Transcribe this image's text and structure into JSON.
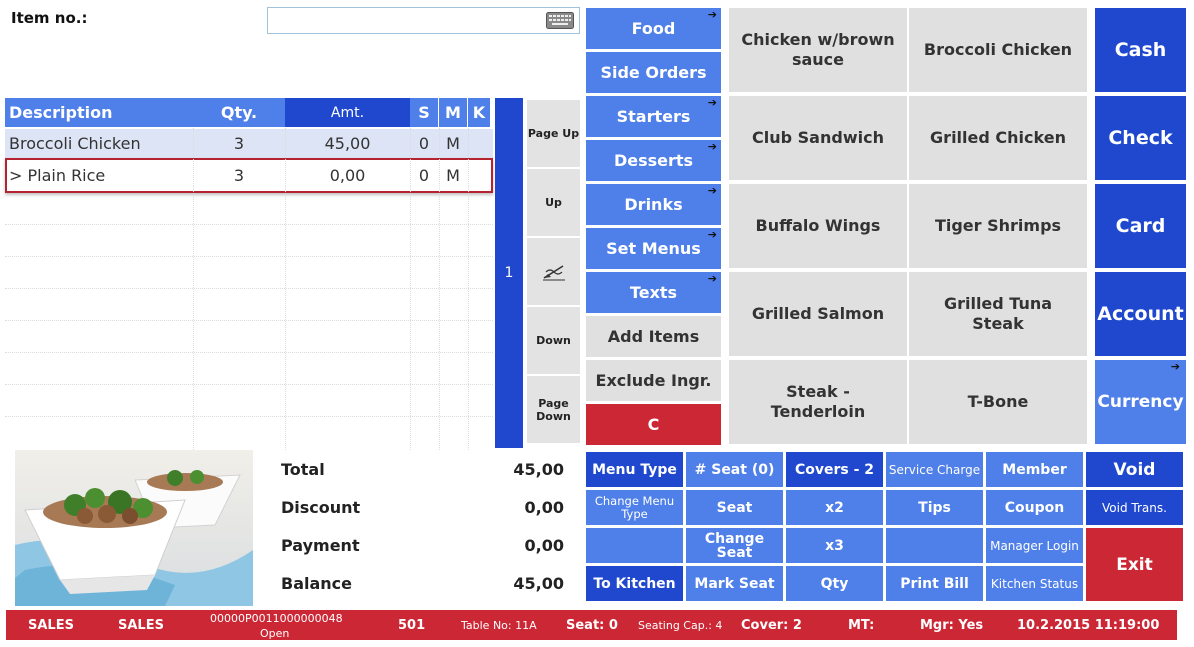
{
  "item_no": {
    "label": "Item no.:",
    "value": ""
  },
  "order": {
    "columns": {
      "description": "Description",
      "qty": "Qty.",
      "amt": "Amt.",
      "s": "S",
      "m": "M",
      "k": "K"
    },
    "rows": [
      {
        "description": "Broccoli Chicken",
        "qty": "3",
        "amt": "45,00",
        "s": "0",
        "m": "M"
      },
      {
        "description": "> Plain Rice",
        "qty": "3",
        "amt": "0,00",
        "s": "0",
        "m": "M"
      }
    ]
  },
  "scroll": {
    "page_indicator": "1"
  },
  "nav": {
    "page_up": "Page Up",
    "up": "Up",
    "down": "Down",
    "page_down": "Page Down"
  },
  "categories": [
    "Food",
    "Side Orders",
    "Starters",
    "Desserts",
    "Drinks",
    "Set Menus",
    "Texts",
    "Add Items",
    "Exclude Ingr.",
    "C"
  ],
  "products": [
    "Chicken w/brown sauce",
    "Broccoli Chicken",
    "Club Sandwich",
    "Grilled Chicken",
    "Buffalo Wings",
    "Tiger Shrimps",
    "Grilled Salmon",
    "Grilled Tuna Steak",
    "Steak - Tenderloin",
    "T-Bone"
  ],
  "payment": [
    "Cash",
    "Check",
    "Card",
    "Account",
    "Currency"
  ],
  "totals": {
    "total_label": "Total",
    "total": "45,00",
    "discount_label": "Discount",
    "discount": "0,00",
    "payment_label": "Payment",
    "payment": "0,00",
    "balance_label": "Balance",
    "balance": "45,00"
  },
  "functions": {
    "menu_type": "Menu Type",
    "seat_count": "# Seat (0)",
    "covers": "Covers - 2",
    "service_charge": "Service Charge",
    "member": "Member",
    "void": "Void",
    "change_menu_type": "Change Menu Type",
    "seat": "Seat",
    "x2": "x2",
    "tips": "Tips",
    "coupon": "Coupon",
    "void_trans": "Void Trans.",
    "change_seat": "Change Seat",
    "x3": "x3",
    "manager_login": "Manager Login",
    "exit": "Exit",
    "to_kitchen": "To Kitchen",
    "mark_seat": "Mark Seat",
    "qty": "Qty",
    "print_bill": "Print Bill",
    "kitchen_status": "Kitchen Status"
  },
  "status": {
    "mode1": "SALES",
    "mode2": "SALES",
    "order_id": "00000P0011000000048",
    "order_state": "Open",
    "terminal": "501",
    "table": "Table No: 11A",
    "seat": "Seat: 0",
    "seating_cap": "Seating Cap.: 4",
    "cover": "Cover: 2",
    "mt": "MT:",
    "mgr": "Mgr: Yes",
    "datetime": "10.2.2015 11:19:00"
  },
  "colors": {
    "accent_dark": "#1f48cf",
    "accent_light": "#4f7fe8",
    "danger": "#cc2735",
    "neutral": "#e0e0e0"
  }
}
